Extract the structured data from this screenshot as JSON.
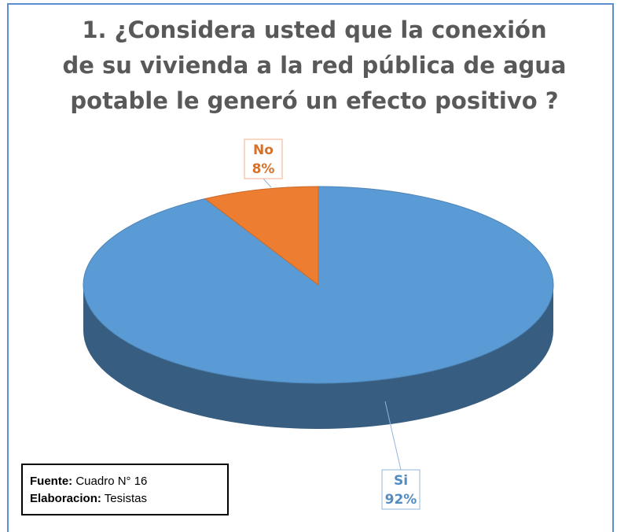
{
  "chart_data": {
    "type": "pie",
    "title": [
      "1. ¿Considera usted que la conexión",
      "de su vivienda a la red pública de agua",
      "potable le generó un efecto positivo ?"
    ],
    "categories": [
      "Si",
      "No"
    ],
    "values": [
      92,
      8
    ],
    "value_labels": [
      "92%",
      "8%"
    ],
    "colors": [
      "#5b9bd5",
      "#ed7d31"
    ],
    "source": {
      "label": "Fuente:",
      "text": "Cuadro N° 16"
    },
    "credit": {
      "label": "Elaboracion:",
      "text": "Tesistas"
    }
  }
}
